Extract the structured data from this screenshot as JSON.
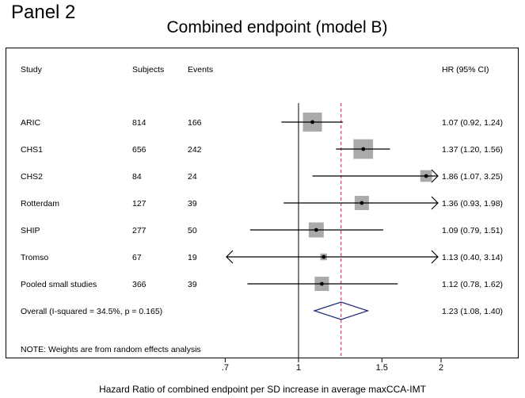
{
  "panel_label": "Panel 2",
  "chart_data": {
    "type": "forest",
    "title": "Combined endpoint (model B)",
    "xlabel": "Hazard Ratio of combined endpoint per SD increase in average maxCCA-IMT",
    "x_scale": "log",
    "xlim": [
      0.63,
      2.0
    ],
    "xticks": [
      0.7,
      1,
      1.5,
      2
    ],
    "xtick_labels": [
      ".7",
      "1",
      "1.5",
      "2"
    ],
    "reference_line": 1,
    "overall_line": 1.23,
    "columns": {
      "study": "Study",
      "subjects": "Subjects",
      "events": "Events",
      "hr": "HR (95% CI)"
    },
    "studies": [
      {
        "study": "ARIC",
        "subjects": "814",
        "events": "166",
        "hr": 1.07,
        "lo": 0.92,
        "hi": 1.24,
        "hr_text": "1.07 (0.92, 1.24)",
        "weight": 16
      },
      {
        "study": "CHS1",
        "subjects": "656",
        "events": "242",
        "hr": 1.37,
        "lo": 1.2,
        "hi": 1.56,
        "hr_text": "1.37 (1.20, 1.56)",
        "weight": 17
      },
      {
        "study": "CHS2",
        "subjects": "84",
        "events": "24",
        "hr": 1.86,
        "lo": 1.07,
        "hi": 3.25,
        "hr_text": "1.86 (1.07, 3.25)",
        "weight": 6
      },
      {
        "study": "Rotterdam",
        "subjects": "127",
        "events": "39",
        "hr": 1.36,
        "lo": 0.93,
        "hi": 1.98,
        "hr_text": "1.36 (0.93, 1.98)",
        "weight": 9
      },
      {
        "study": "SHIP",
        "subjects": "277",
        "events": "50",
        "hr": 1.09,
        "lo": 0.79,
        "hi": 1.51,
        "hr_text": "1.09 (0.79, 1.51)",
        "weight": 10
      },
      {
        "study": "Tromso",
        "subjects": "67",
        "events": "19",
        "hr": 1.13,
        "lo": 0.4,
        "hi": 3.14,
        "hr_text": "1.13 (0.40, 3.14)",
        "weight": 2
      },
      {
        "study": "Pooled small studies",
        "subjects": "366",
        "events": "39",
        "hr": 1.12,
        "lo": 0.78,
        "hi": 1.62,
        "hr_text": "1.12 (0.78, 1.62)",
        "weight": 9
      }
    ],
    "overall": {
      "label": "Overall  (I-squared = 34.5%, p = 0.165)",
      "hr": 1.23,
      "lo": 1.08,
      "hi": 1.4,
      "hr_text": "1.23 (1.08, 1.40)"
    },
    "note": "NOTE: Weights are from random effects analysis",
    "colors": {
      "box": "#aaaaaa",
      "diamond": "#1f2a7a",
      "overall_line": "#b03050",
      "line": "#000000"
    }
  }
}
